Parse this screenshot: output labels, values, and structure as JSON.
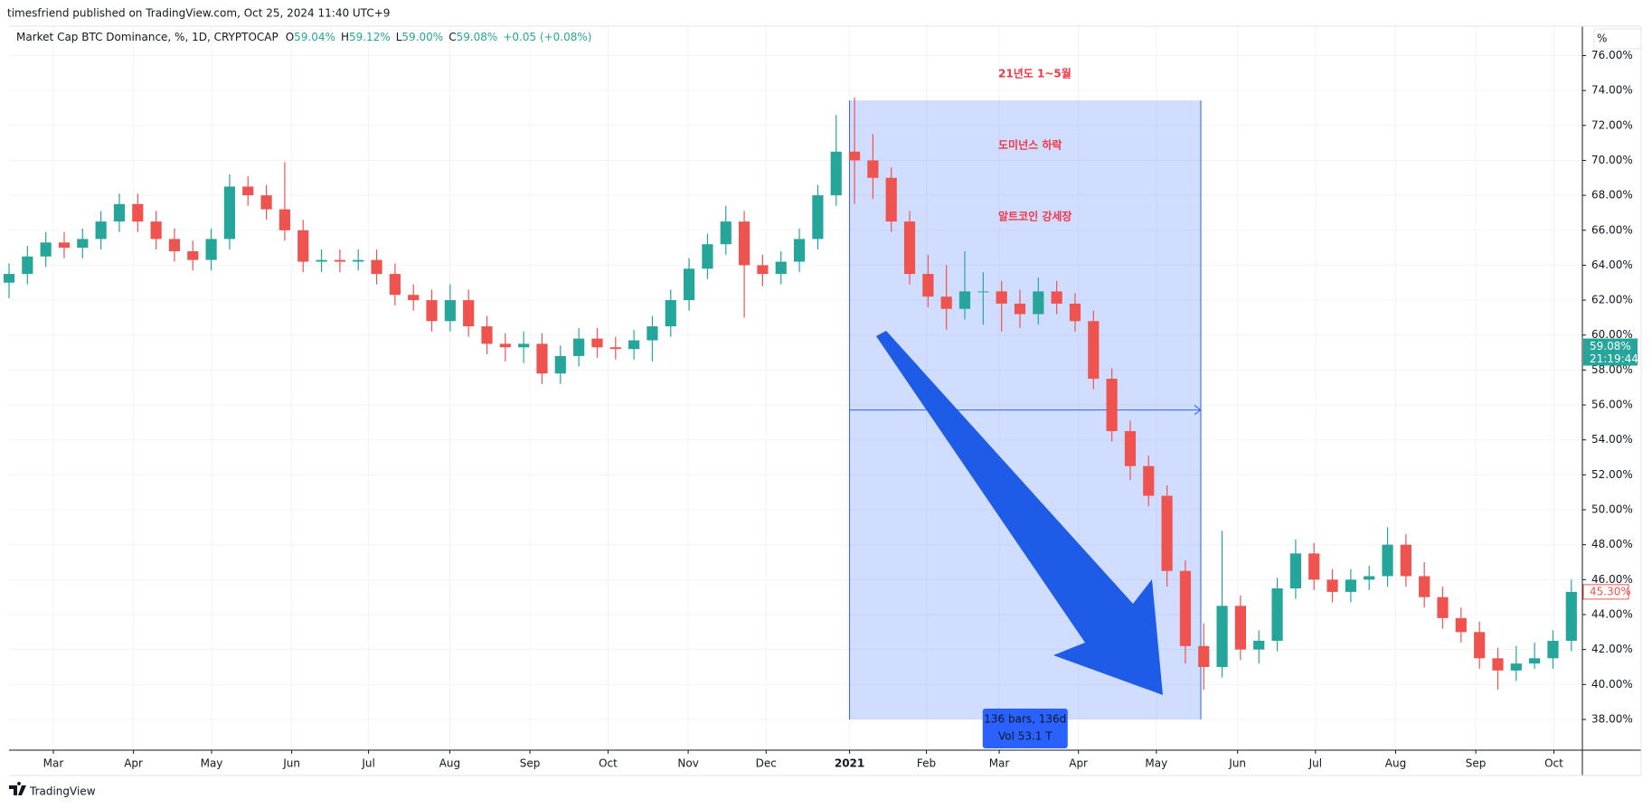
{
  "header": {
    "published": "timesfriend published on TradingView.com, Oct 25, 2024 11:40 UTC+9",
    "brand": "TradingView",
    "scale_mode": "%"
  },
  "chart_data": {
    "type": "candlestick",
    "title": "Market Cap BTC Dominance, %, 1D, CRYPTOCAP",
    "legend_values": [
      {
        "label": "O",
        "value": "59.04%"
      },
      {
        "label": "H",
        "value": "59.12%"
      },
      {
        "label": "L",
        "value": "59.00%"
      },
      {
        "label": "C",
        "value": "59.08%"
      }
    ],
    "change": "+0.05 (+0.08%)",
    "up_color": "#26a69a",
    "down_color": "#ef5350",
    "open": [
      63,
      63.5,
      64.5,
      65.3,
      65,
      65.5,
      66.5,
      67.5,
      66.5,
      65.5,
      64.8,
      64.3,
      65.5,
      68.5,
      68,
      67.2,
      66,
      64.2,
      64.3,
      64.2,
      64.3,
      63.5,
      62.3,
      62,
      60.8,
      62,
      60.5,
      59.5,
      59.3,
      59.5,
      57.8,
      58.8,
      59.8,
      59.3,
      59.2,
      59.7,
      60.5,
      62,
      63.8,
      65.2,
      66.5,
      64,
      63.5,
      64.2,
      65.5,
      68,
      70.5,
      70,
      69,
      66.5,
      63.5,
      62.2,
      61.5,
      62.5,
      62.5,
      61.8,
      61.2,
      62.5,
      61.8,
      60.8,
      57.5,
      54.5,
      52.5,
      50.8,
      46.5,
      42.2,
      41,
      44.5,
      42,
      42.5,
      45.5,
      47.5,
      46,
      45.3,
      46,
      46.2,
      48,
      46.2,
      45,
      43.8,
      43,
      41.5,
      40.8,
      41.2,
      41.5,
      42.5
    ],
    "high": [
      64.1,
      65.1,
      65.9,
      65.9,
      66.1,
      67.1,
      68.1,
      68.1,
      67.1,
      66.1,
      65.4,
      66.1,
      69.2,
      69.1,
      68.6,
      69.9,
      66.6,
      64.9,
      64.9,
      64.9,
      64.9,
      64.1,
      62.9,
      62.6,
      62.9,
      62.6,
      61.1,
      60.1,
      60.2,
      60.1,
      59.4,
      60.4,
      60.4,
      59.9,
      60.3,
      61.1,
      62.6,
      64.4,
      65.8,
      67.4,
      67.1,
      64.6,
      64.8,
      66.1,
      68.6,
      72.6,
      73.6,
      71.5,
      69.6,
      67.1,
      64.6,
      64,
      64.8,
      63.6,
      63.1,
      62.6,
      63.3,
      63.1,
      62.4,
      61.4,
      58.1,
      55.1,
      53.1,
      51.4,
      47.1,
      43.5,
      48.8,
      45.1,
      43.1,
      46.1,
      48.3,
      48.1,
      46.6,
      46.6,
      46.8,
      49,
      48.6,
      47,
      45.6,
      44.4,
      43.6,
      42.1,
      42.2,
      42.4,
      43.1,
      46
    ],
    "low": [
      62.1,
      62.9,
      63.9,
      64.4,
      64.4,
      64.9,
      65.9,
      65.9,
      64.9,
      64.2,
      63.7,
      63.7,
      64.9,
      67.4,
      66.6,
      65.4,
      63.6,
      63.6,
      63.6,
      63.7,
      62.9,
      61.7,
      61.4,
      60.2,
      60.2,
      59.9,
      58.9,
      58.5,
      58.4,
      57.2,
      57.2,
      58.2,
      58.7,
      58.6,
      58.6,
      58.5,
      59.9,
      61.4,
      63.2,
      64.6,
      61,
      62.8,
      62.9,
      63.6,
      64.9,
      67.4,
      67.5,
      67.8,
      65.9,
      62.9,
      61.6,
      60.3,
      60.9,
      60.6,
      60.2,
      60.4,
      60.6,
      61.2,
      60.2,
      56.9,
      53.9,
      51.7,
      50.2,
      45.6,
      41.2,
      39.7,
      40.4,
      41.4,
      41.2,
      41.9,
      44.9,
      45.4,
      44.7,
      44.7,
      45.4,
      45.6,
      45.6,
      44.4,
      43.2,
      42.4,
      40.9,
      39.7,
      40.2,
      40.9,
      40.9,
      41.9
    ],
    "close": [
      63.5,
      64.5,
      65.3,
      65,
      65.5,
      66.5,
      67.5,
      66.5,
      65.5,
      64.8,
      64.3,
      65.5,
      68.5,
      68,
      67.2,
      66,
      64.2,
      64.3,
      64.2,
      64.3,
      63.5,
      62.3,
      62,
      60.8,
      62,
      60.5,
      59.5,
      59.3,
      59.5,
      57.8,
      58.8,
      59.8,
      59.3,
      59.2,
      59.7,
      60.5,
      62,
      63.8,
      65.2,
      66.5,
      64,
      63.5,
      64.2,
      65.5,
      68,
      70.5,
      70,
      69,
      66.5,
      63.5,
      62.2,
      61.5,
      62.5,
      62.5,
      61.8,
      61.2,
      62.5,
      61.8,
      60.8,
      57.5,
      54.5,
      52.5,
      50.8,
      46.5,
      42.2,
      41,
      44.5,
      42,
      42.5,
      45.5,
      47.5,
      46,
      45.3,
      46,
      46.2,
      48,
      46.2,
      45,
      43.8,
      43,
      41.5,
      40.8,
      41.2,
      41.5,
      42.5,
      45.3
    ],
    "xlim": [
      0,
      85.6
    ],
    "xticks": [
      {
        "value": 2.41,
        "label": "Mar"
      },
      {
        "value": 6.77,
        "label": "Apr"
      },
      {
        "value": 11.02,
        "label": "May"
      },
      {
        "value": 15.38,
        "label": "Jun"
      },
      {
        "value": 19.56,
        "label": "Jul"
      },
      {
        "value": 23.98,
        "label": "Aug"
      },
      {
        "value": 28.34,
        "label": "Sep"
      },
      {
        "value": 32.59,
        "label": "Oct"
      },
      {
        "value": 36.95,
        "label": "Nov"
      },
      {
        "value": 41.19,
        "label": "Dec"
      },
      {
        "value": 45.73,
        "label": "2021"
      },
      {
        "value": 49.91,
        "label": "Feb"
      },
      {
        "value": 53.87,
        "label": "Mar"
      },
      {
        "value": 58.18,
        "label": "Apr"
      },
      {
        "value": 62.42,
        "label": "May"
      },
      {
        "value": 66.84,
        "label": "Jun"
      },
      {
        "value": 71.08,
        "label": "Jul"
      },
      {
        "value": 75.44,
        "label": "Aug"
      },
      {
        "value": 79.8,
        "label": "Sep"
      },
      {
        "value": 84.05,
        "label": "Oct"
      }
    ],
    "ylim": [
      36.24,
      77.68
    ],
    "yticks": [
      {
        "value": 38,
        "label": "38.00%"
      },
      {
        "value": 40,
        "label": "40.00%"
      },
      {
        "value": 42,
        "label": "42.00%"
      },
      {
        "value": 44,
        "label": "44.00%"
      },
      {
        "value": 46,
        "label": "46.00%"
      },
      {
        "value": 48,
        "label": "48.00%"
      },
      {
        "value": 50,
        "label": "50.00%"
      },
      {
        "value": 52,
        "label": "52.00%"
      },
      {
        "value": 54,
        "label": "54.00%"
      },
      {
        "value": 56,
        "label": "56.00%"
      },
      {
        "value": 58,
        "label": "58.00%"
      },
      {
        "value": 60,
        "label": "60.00%"
      },
      {
        "value": 62,
        "label": "62.00%"
      },
      {
        "value": 64,
        "label": "64.00%"
      },
      {
        "value": 66,
        "label": "66.00%"
      },
      {
        "value": 68,
        "label": "68.00%"
      },
      {
        "value": 70,
        "label": "70.00%"
      },
      {
        "value": 72,
        "label": "72.00%"
      },
      {
        "value": 74,
        "label": "74.00%"
      },
      {
        "value": 76,
        "label": "76.00%"
      }
    ],
    "grid": true,
    "price_badges": [
      {
        "value": 59.08,
        "label": "59.08%",
        "sub": "21:19:44",
        "color": "#26a69a"
      },
      {
        "value": 45.3,
        "label": "45.30%",
        "color": "#ef5350"
      }
    ],
    "range": {
      "x": [
        45.73,
        64.84
      ],
      "y": [
        38,
        73.43
      ],
      "bars": "136 bars, 136d",
      "volume": "Vol 53.1 T",
      "color": "#2962ff"
    },
    "annotations": [
      "21년도 1~5월",
      "도미넌스 하락",
      "알트코인 강세장"
    ],
    "annotation_color": "#f23645"
  }
}
